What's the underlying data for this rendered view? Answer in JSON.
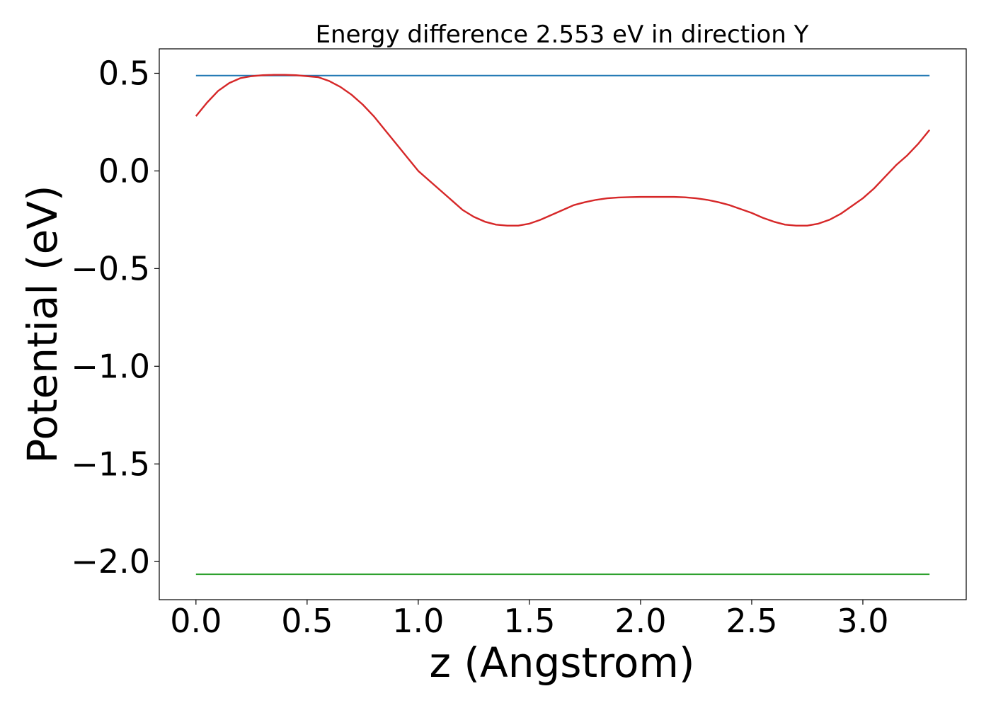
{
  "chart_data": {
    "type": "line",
    "title": "Energy difference 2.553 eV in direction Y",
    "xlabel": "z (Angstrom)",
    "ylabel": "Potential (eV)",
    "xlim": [
      -0.165,
      3.465
    ],
    "ylim": [
      -2.195,
      0.625
    ],
    "grid": false,
    "xticks": [
      0.0,
      0.5,
      1.0,
      1.5,
      2.0,
      2.5,
      3.0
    ],
    "xtick_labels": [
      "0.0",
      "0.5",
      "1.0",
      "1.5",
      "2.0",
      "2.5",
      "3.0"
    ],
    "yticks": [
      0.5,
      0.0,
      -0.5,
      -1.0,
      -1.5,
      -2.0
    ],
    "ytick_labels": [
      "0.5",
      "0.0",
      "−0.5",
      "−1.0",
      "−1.5",
      "−2.0"
    ],
    "colors": {
      "upper": "#1f77b4",
      "potential": "#d62728",
      "lower": "#2ca02c"
    },
    "series": [
      {
        "key": "upper",
        "values": [
          [
            0.0,
            0.488
          ],
          [
            3.3,
            0.488
          ]
        ]
      },
      {
        "key": "potential",
        "values": [
          [
            0.0,
            0.28
          ],
          [
            0.05,
            0.35
          ],
          [
            0.1,
            0.41
          ],
          [
            0.15,
            0.45
          ],
          [
            0.2,
            0.475
          ],
          [
            0.25,
            0.485
          ],
          [
            0.3,
            0.49
          ],
          [
            0.35,
            0.492
          ],
          [
            0.4,
            0.492
          ],
          [
            0.45,
            0.49
          ],
          [
            0.5,
            0.485
          ],
          [
            0.55,
            0.48
          ],
          [
            0.6,
            0.46
          ],
          [
            0.65,
            0.43
          ],
          [
            0.7,
            0.39
          ],
          [
            0.75,
            0.34
          ],
          [
            0.8,
            0.28
          ],
          [
            0.85,
            0.21
          ],
          [
            0.9,
            0.14
          ],
          [
            0.95,
            0.07
          ],
          [
            1.0,
            0.0
          ],
          [
            1.05,
            -0.05
          ],
          [
            1.1,
            -0.1
          ],
          [
            1.15,
            -0.15
          ],
          [
            1.2,
            -0.2
          ],
          [
            1.25,
            -0.235
          ],
          [
            1.3,
            -0.26
          ],
          [
            1.35,
            -0.275
          ],
          [
            1.4,
            -0.28
          ],
          [
            1.45,
            -0.28
          ],
          [
            1.5,
            -0.27
          ],
          [
            1.55,
            -0.25
          ],
          [
            1.6,
            -0.225
          ],
          [
            1.65,
            -0.2
          ],
          [
            1.7,
            -0.175
          ],
          [
            1.75,
            -0.16
          ],
          [
            1.8,
            -0.148
          ],
          [
            1.85,
            -0.14
          ],
          [
            1.9,
            -0.136
          ],
          [
            1.95,
            -0.134
          ],
          [
            2.0,
            -0.133
          ],
          [
            2.05,
            -0.133
          ],
          [
            2.1,
            -0.133
          ],
          [
            2.15,
            -0.133
          ],
          [
            2.2,
            -0.135
          ],
          [
            2.25,
            -0.14
          ],
          [
            2.3,
            -0.148
          ],
          [
            2.35,
            -0.16
          ],
          [
            2.4,
            -0.175
          ],
          [
            2.45,
            -0.195
          ],
          [
            2.5,
            -0.215
          ],
          [
            2.55,
            -0.24
          ],
          [
            2.6,
            -0.26
          ],
          [
            2.65,
            -0.275
          ],
          [
            2.7,
            -0.28
          ],
          [
            2.75,
            -0.28
          ],
          [
            2.8,
            -0.27
          ],
          [
            2.85,
            -0.25
          ],
          [
            2.9,
            -0.22
          ],
          [
            2.95,
            -0.18
          ],
          [
            3.0,
            -0.14
          ],
          [
            3.05,
            -0.09
          ],
          [
            3.1,
            -0.03
          ],
          [
            3.15,
            0.03
          ],
          [
            3.2,
            0.08
          ],
          [
            3.25,
            0.14
          ],
          [
            3.3,
            0.21
          ]
        ]
      },
      {
        "key": "lower",
        "values": [
          [
            0.0,
            -2.065
          ],
          [
            3.3,
            -2.065
          ]
        ]
      }
    ]
  }
}
